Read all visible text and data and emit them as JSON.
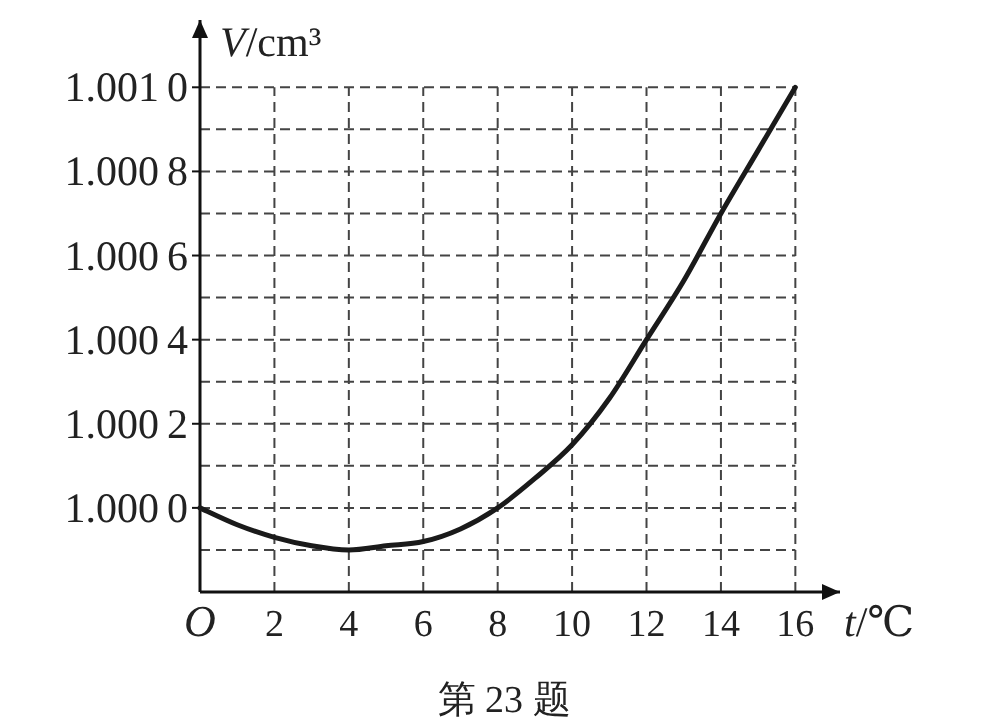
{
  "chart_data": {
    "type": "line",
    "xlabel": "t/℃",
    "ylabel": "V/cm³",
    "annotations": [
      "第 23 题"
    ],
    "x": [
      0,
      1,
      2,
      3,
      4,
      5,
      6,
      7,
      8,
      9,
      10,
      11,
      12,
      13,
      14,
      15,
      16
    ],
    "series": [
      {
        "color": "#1a1a1a",
        "values": [
          1.0,
          0.99996,
          0.99993,
          0.99991,
          0.9999,
          0.99991,
          0.99992,
          0.99995,
          1.0,
          1.00007,
          1.00015,
          1.00026,
          1.0004,
          1.00054,
          1.0007,
          1.00085,
          1.001
        ]
      }
    ],
    "xlim": [
      0,
      17.2
    ],
    "ylim": [
      0.9998,
      1.00116
    ],
    "xticks": [
      {
        "value": 0,
        "label": "O"
      },
      2,
      4,
      6,
      8,
      10,
      12,
      14,
      16
    ],
    "yticks": [
      {
        "value": 0.9999,
        "label": null
      },
      {
        "value": 1.0,
        "label": "1.0000"
      },
      {
        "value": 1.0001,
        "label": null
      },
      {
        "value": 1.0002,
        "label": "1.0002"
      },
      {
        "value": 1.0003,
        "label": null
      },
      {
        "value": 1.0004,
        "label": "1.0004"
      },
      {
        "value": 1.0005,
        "label": null
      },
      {
        "value": 1.0006,
        "label": "1.0006"
      },
      {
        "value": 1.0007,
        "label": null
      },
      {
        "value": 1.0008,
        "label": "1.0008"
      },
      {
        "value": 1.0009,
        "label": null
      },
      {
        "value": 1.001,
        "label": "1.0010"
      }
    ],
    "grid": true,
    "line_style": "solid",
    "marker": "none"
  }
}
